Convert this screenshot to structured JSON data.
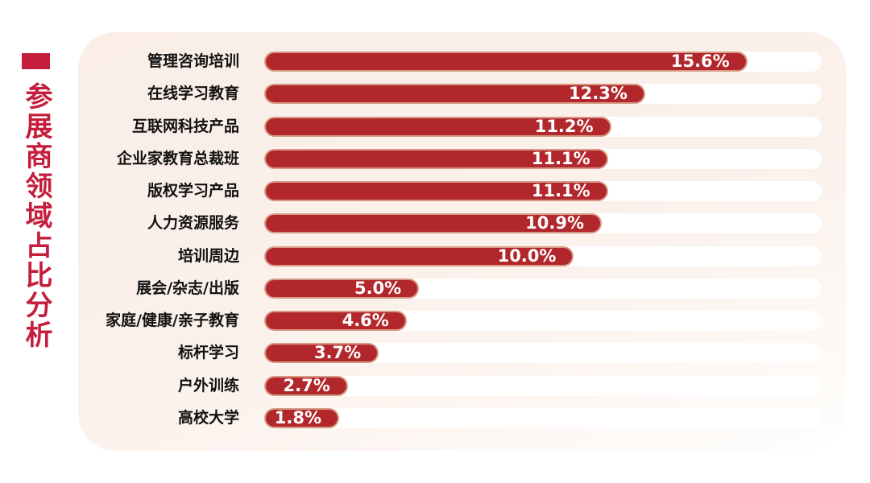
{
  "page": {
    "background_color": "#ffffff",
    "card_background_colors": [
      "#faeee7",
      "#fffefd"
    ]
  },
  "side_title": {
    "text": "参展商领域占比分析",
    "color": "#c41e3c",
    "accent_block": "red-rectangle"
  },
  "chart_data": {
    "type": "bar",
    "orientation": "horizontal",
    "title": "参展商领域占比分析",
    "categories": [
      "管理咨询培训",
      "在线学习教育",
      "互联网科技产品",
      "企业家教育总裁班",
      "版权学习产品",
      "人力资源服务",
      "培训周边",
      "展会/杂志/出版",
      "家庭/健康/亲子教育",
      "标杆学习",
      "户外训练",
      "高校大学"
    ],
    "values": [
      15.6,
      12.3,
      11.2,
      11.1,
      11.1,
      10.9,
      10.0,
      5.0,
      4.6,
      3.7,
      2.7,
      1.8
    ],
    "value_labels": [
      "15.6%",
      "12.3%",
      "11.2%",
      "11.1%",
      "11.1%",
      "10.9%",
      "10.0%",
      "5.0%",
      "4.6%",
      "3.7%",
      "2.7%",
      "1.8%"
    ],
    "xlim": [
      0,
      18
    ],
    "grid": false,
    "legend": "none",
    "bar_color": "#b2272b",
    "track_color": "#ffffff",
    "value_text_color": "#ffffff",
    "label_text_color": "#111111"
  }
}
